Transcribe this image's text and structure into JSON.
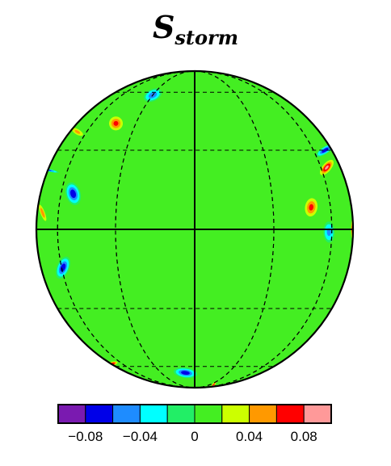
{
  "chart_data": {
    "type": "heatmap",
    "title": {
      "main": "S",
      "subscript": "storm"
    },
    "projection": "orthographic globe",
    "grid_lines": true,
    "field_color": "#44ee22",
    "colorbar": {
      "colors": [
        "#7a1ab0",
        "#0000e8",
        "#1e8cff",
        "#00ffff",
        "#22ee66",
        "#44ee22",
        "#ccff00",
        "#ff9900",
        "#ff0000",
        "#ff9999"
      ],
      "tick_labels": [
        "−0.08",
        "−0.04",
        "0",
        "0.04",
        "0.08"
      ]
    },
    "features": [
      {
        "lon": -85,
        "lat": 22,
        "value": -0.07
      },
      {
        "lon": -30,
        "lat": 58,
        "value": -0.06
      },
      {
        "lon": -42,
        "lat": 42,
        "value": 0.07
      },
      {
        "lon": -70,
        "lat": 38,
        "value": 0.05
      },
      {
        "lon": -52,
        "lat": 13,
        "value": -0.08
      },
      {
        "lon": -75,
        "lat": 6,
        "value": 0.06
      },
      {
        "lon": -59,
        "lat": -14,
        "value": -0.08
      },
      {
        "lon": 48,
        "lat": 8,
        "value": 0.07
      },
      {
        "lon": 58,
        "lat": -1,
        "value": -0.05
      },
      {
        "lon": 72,
        "lat": 30,
        "value": -0.08
      },
      {
        "lon": 65,
        "lat": 23,
        "value": 0.09
      },
      {
        "lon": 84,
        "lat": 0,
        "value": 0.07
      },
      {
        "lon": -78,
        "lat": -58,
        "value": 0.08
      },
      {
        "lon": -8,
        "lat": -65,
        "value": -0.08
      },
      {
        "lon": 55,
        "lat": -82,
        "value": 0.09
      }
    ]
  }
}
